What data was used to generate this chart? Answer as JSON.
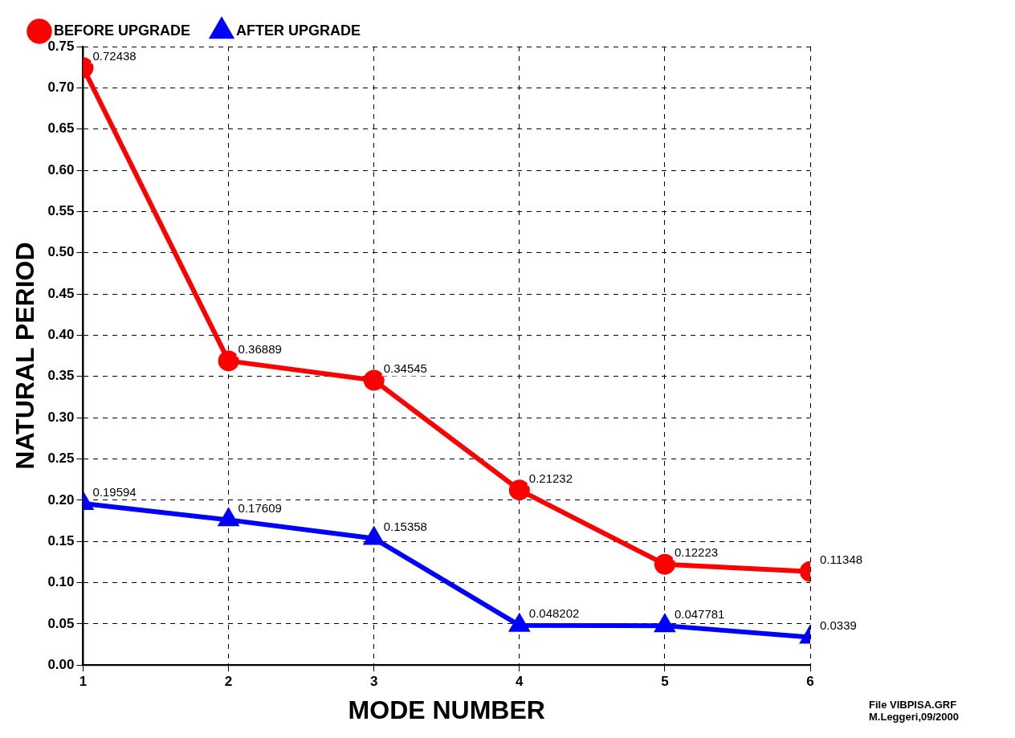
{
  "chart_data": {
    "type": "line",
    "xlabel": "MODE NUMBER",
    "ylabel": "NATURAL PERIOD",
    "x": [
      1,
      2,
      3,
      4,
      5,
      6
    ],
    "series": [
      {
        "name": "BEFORE UPGRADE",
        "color": "#ff0000",
        "marker": "circle",
        "values": [
          0.72438,
          0.36889,
          0.34545,
          0.21232,
          0.12223,
          0.11348
        ]
      },
      {
        "name": "AFTER UPGRADE",
        "color": "#0000ff",
        "marker": "triangle",
        "values": [
          0.19594,
          0.17609,
          0.15358,
          0.048202,
          0.047781,
          0.0339
        ]
      }
    ],
    "xlim": [
      1,
      6
    ],
    "xticks": [
      1,
      2,
      3,
      4,
      5,
      6
    ],
    "ylim": [
      0,
      0.75
    ],
    "yticks": [
      {
        "value": 0,
        "label": "0.00"
      },
      {
        "value": 0.05,
        "label": "0.05"
      },
      {
        "value": 0.1,
        "label": "0.10"
      },
      {
        "value": 0.15,
        "label": "0.15"
      },
      {
        "value": 0.2,
        "label": "0.20"
      },
      {
        "value": 0.25,
        "label": "0.25"
      },
      {
        "value": 0.3,
        "label": "0.30"
      },
      {
        "value": 0.35,
        "label": "0.35"
      },
      {
        "value": 0.4,
        "label": "0.40"
      },
      {
        "value": 0.45,
        "label": "0.45"
      },
      {
        "value": 0.5,
        "label": "0.50"
      },
      {
        "value": 0.55,
        "label": "0.55"
      },
      {
        "value": 0.6,
        "label": "0.60"
      },
      {
        "value": 0.65,
        "label": "0.65"
      },
      {
        "value": 0.7,
        "label": "0.70"
      },
      {
        "value": 0.75,
        "label": "0.75"
      }
    ],
    "grid": true,
    "legend": "top",
    "line_style": "solid",
    "data_labels": true,
    "annotations": [
      "File VIBPISA.GRF",
      "M.Leggeri,09/2000"
    ]
  }
}
